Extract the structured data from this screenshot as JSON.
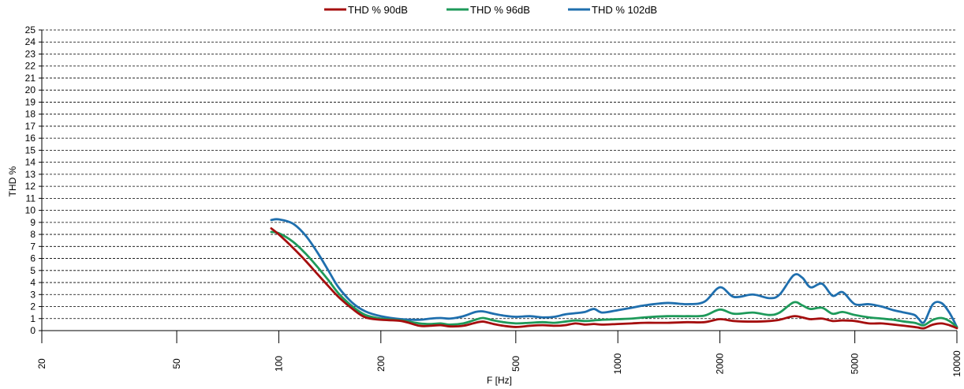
{
  "chart_data": {
    "type": "line",
    "xlabel": "F [Hz]",
    "ylabel": "THD %",
    "x_scale": "log",
    "xlim": [
      20,
      10000
    ],
    "ylim": [
      0,
      25
    ],
    "x_ticks": [
      20,
      50,
      100,
      200,
      500,
      1000,
      2000,
      5000,
      10000
    ],
    "y_ticks": [
      0,
      1,
      2,
      3,
      4,
      5,
      6,
      7,
      8,
      9,
      10,
      11,
      12,
      13,
      14,
      15,
      16,
      17,
      18,
      19,
      20,
      21,
      22,
      23,
      24,
      25
    ],
    "grid": "horizontal dashed",
    "legend_position": "top",
    "series": [
      {
        "name": "THD % 90dB",
        "color": "#a50f0f",
        "x": [
          95,
          100,
          110,
          120,
          130,
          140,
          150,
          165,
          180,
          200,
          230,
          260,
          280,
          300,
          320,
          350,
          380,
          400,
          430,
          460,
          500,
          550,
          600,
          650,
          700,
          750,
          800,
          850,
          900,
          1000,
          1100,
          1200,
          1400,
          1600,
          1800,
          2000,
          2200,
          2500,
          2800,
          3000,
          3300,
          3500,
          3700,
          4000,
          4300,
          4600,
          5000,
          5500,
          6000,
          6500,
          7000,
          7500,
          7700,
          8000,
          8500,
          9000,
          9500,
          10000
        ],
        "y": [
          8.5,
          8.0,
          6.9,
          5.8,
          4.7,
          3.7,
          2.8,
          1.8,
          1.1,
          0.9,
          0.8,
          0.4,
          0.4,
          0.45,
          0.35,
          0.4,
          0.65,
          0.75,
          0.55,
          0.4,
          0.3,
          0.4,
          0.45,
          0.4,
          0.45,
          0.6,
          0.5,
          0.55,
          0.5,
          0.55,
          0.6,
          0.65,
          0.65,
          0.7,
          0.7,
          0.95,
          0.8,
          0.75,
          0.8,
          0.9,
          1.2,
          1.1,
          0.95,
          1.0,
          0.8,
          0.85,
          0.8,
          0.6,
          0.6,
          0.5,
          0.4,
          0.3,
          0.25,
          0.2,
          0.5,
          0.6,
          0.45,
          0.2
        ]
      },
      {
        "name": "THD % 96dB",
        "color": "#1e9a5a",
        "x": [
          95,
          100,
          110,
          120,
          130,
          140,
          150,
          165,
          180,
          200,
          230,
          260,
          280,
          300,
          320,
          350,
          380,
          400,
          430,
          460,
          500,
          550,
          600,
          650,
          700,
          750,
          800,
          850,
          900,
          1000,
          1100,
          1200,
          1400,
          1600,
          1800,
          2000,
          2200,
          2500,
          2800,
          3000,
          3300,
          3500,
          3700,
          4000,
          4300,
          4600,
          5000,
          5500,
          6000,
          6500,
          7000,
          7500,
          7700,
          8000,
          8500,
          9000,
          9500,
          10000
        ],
        "y": [
          8.2,
          8.1,
          7.4,
          6.4,
          5.3,
          4.2,
          3.1,
          2.0,
          1.3,
          1.0,
          0.85,
          0.6,
          0.55,
          0.6,
          0.5,
          0.6,
          0.9,
          1.05,
          0.85,
          0.7,
          0.6,
          0.65,
          0.7,
          0.65,
          0.75,
          0.85,
          0.8,
          0.85,
          0.9,
          0.95,
          1.0,
          1.1,
          1.2,
          1.2,
          1.25,
          1.75,
          1.4,
          1.5,
          1.3,
          1.5,
          2.35,
          2.1,
          1.8,
          1.9,
          1.4,
          1.55,
          1.3,
          1.1,
          1.0,
          0.9,
          0.75,
          0.65,
          0.55,
          0.45,
          0.9,
          1.05,
          0.8,
          0.3
        ]
      },
      {
        "name": "THD % 102dB",
        "color": "#1f6fae",
        "x": [
          95,
          100,
          110,
          120,
          130,
          140,
          150,
          165,
          180,
          200,
          230,
          260,
          280,
          300,
          320,
          350,
          380,
          400,
          430,
          460,
          500,
          550,
          600,
          650,
          700,
          750,
          800,
          850,
          900,
          1000,
          1100,
          1200,
          1400,
          1600,
          1800,
          2000,
          2200,
          2500,
          2800,
          3000,
          3300,
          3500,
          3700,
          4000,
          4300,
          4600,
          5000,
          5500,
          6000,
          6500,
          7000,
          7500,
          7700,
          8000,
          8500,
          9000,
          9500,
          10000
        ],
        "y": [
          9.2,
          9.25,
          8.9,
          7.9,
          6.5,
          5.0,
          3.6,
          2.3,
          1.6,
          1.2,
          0.95,
          0.9,
          1.0,
          1.05,
          1.0,
          1.2,
          1.55,
          1.6,
          1.4,
          1.25,
          1.15,
          1.2,
          1.1,
          1.15,
          1.35,
          1.45,
          1.55,
          1.8,
          1.5,
          1.7,
          1.9,
          2.1,
          2.3,
          2.2,
          2.4,
          3.6,
          2.8,
          3.0,
          2.7,
          3.0,
          4.6,
          4.4,
          3.6,
          3.9,
          2.9,
          3.2,
          2.2,
          2.2,
          2.0,
          1.7,
          1.5,
          1.3,
          1.0,
          0.7,
          2.2,
          2.3,
          1.5,
          0.3
        ]
      }
    ]
  }
}
